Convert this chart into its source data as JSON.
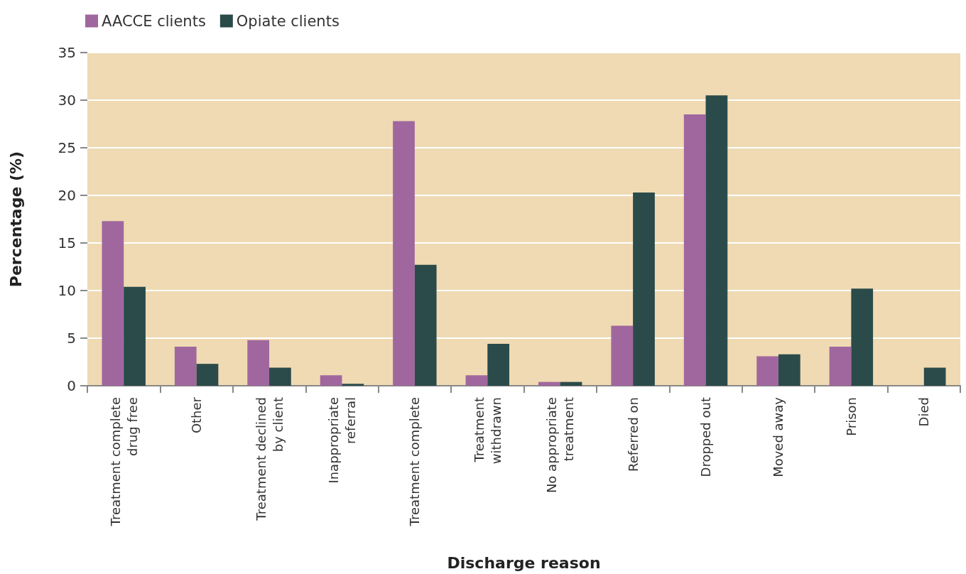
{
  "chart_data": {
    "type": "bar",
    "xlabel": "Discharge reason",
    "ylabel": "Percentage (%)",
    "categories": [
      "Treatment complete\ndrug free",
      "Other",
      "Treatment declined\nby client",
      "Inappropriate\nreferral",
      "Treatment complete",
      "Treatment\nwithdrawn",
      "No appropriate\ntreatment",
      "Referred on",
      "Dropped out",
      "Moved away",
      "Prison",
      "Died"
    ],
    "series": [
      {
        "name": "AACCE clients",
        "color": "#a0679e",
        "values": [
          17.3,
          4.1,
          4.8,
          1.1,
          27.8,
          1.1,
          0.4,
          6.3,
          28.5,
          3.1,
          4.1,
          0
        ]
      },
      {
        "name": "Opiate clients",
        "color": "#2b4b4a",
        "values": [
          10.4,
          2.3,
          1.9,
          0.2,
          12.7,
          4.4,
          0.4,
          20.3,
          30.5,
          3.3,
          10.2,
          1.9
        ]
      }
    ],
    "ylim": [
      0,
      35
    ],
    "yticks": [
      0,
      5,
      10,
      15,
      20,
      25,
      30,
      35
    ],
    "grid": "y",
    "legend": "top left"
  }
}
